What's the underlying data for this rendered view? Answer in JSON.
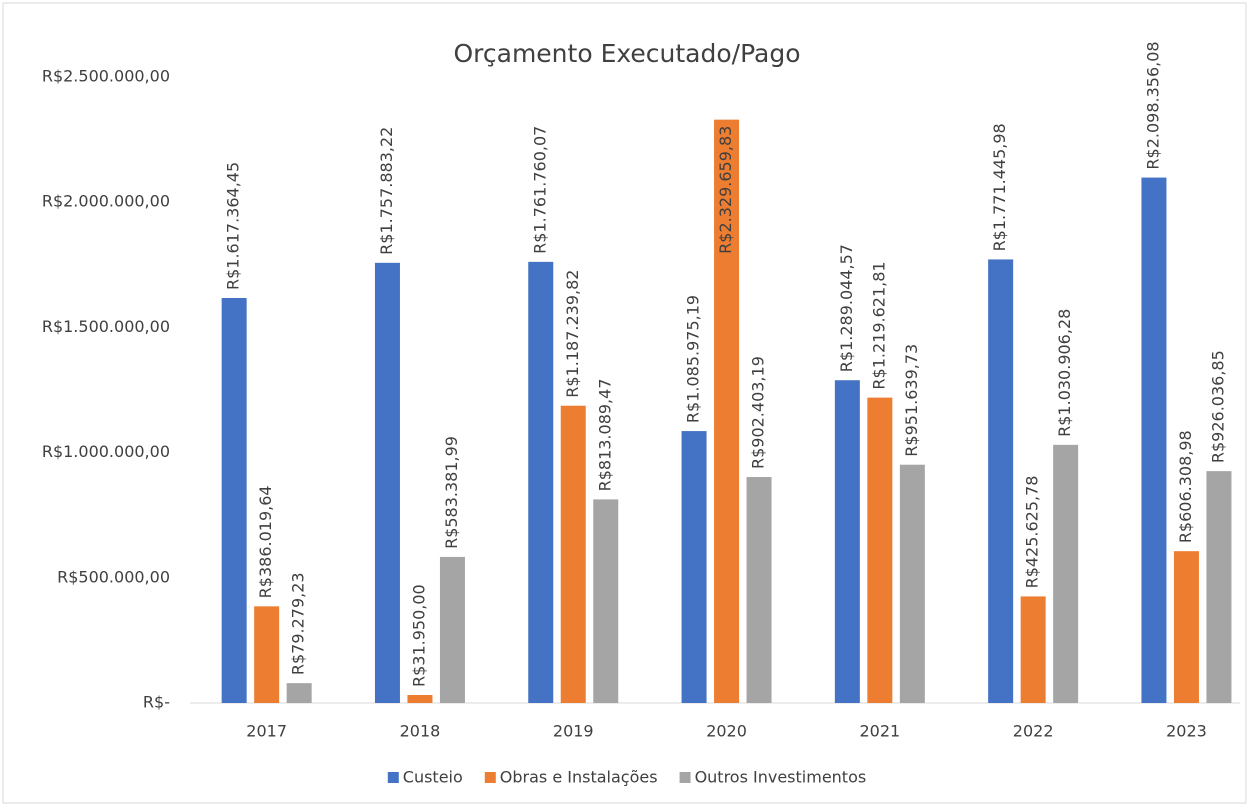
{
  "chart_data": {
    "type": "bar",
    "title": "Orçamento Executado/Pago",
    "categories": [
      "2017",
      "2018",
      "2019",
      "2020",
      "2021",
      "2022",
      "2023"
    ],
    "series": [
      {
        "name": "Custeio",
        "color": "#4472c4",
        "values": [
          1617364.45,
          1757883.22,
          1761760.07,
          1085975.19,
          1289044.57,
          1771445.98,
          2098356.08
        ],
        "value_labels": [
          "R$1.617.364,45",
          "R$1.757.883,22",
          "R$1.761.760,07",
          "R$1.085.975,19",
          "R$1.289.044,57",
          "R$1.771.445,98",
          "R$2.098.356,08"
        ]
      },
      {
        "name": "Obras e Instalações",
        "color": "#ed7d31",
        "values": [
          386019.64,
          31950.0,
          1187239.82,
          2329659.83,
          1219621.81,
          425625.78,
          606308.98
        ],
        "value_labels": [
          "R$386.019,64",
          "R$31.950,00",
          "R$1.187.239,82",
          "R$2.329.659,83",
          "R$1.219.621,81",
          "R$425.625,78",
          "R$606.308,98"
        ]
      },
      {
        "name": "Outros Investimentos",
        "color": "#a5a5a5",
        "values": [
          79279.23,
          583381.99,
          813089.47,
          902403.19,
          951639.73,
          1030906.28,
          926036.85
        ],
        "value_labels": [
          "R$79.279,23",
          "R$583.381,99",
          "R$813.089,47",
          "R$902.403,19",
          "R$951.639,73",
          "R$1.030.906,28",
          "R$926.036,85"
        ]
      }
    ],
    "ylim": [
      0,
      2500000
    ],
    "yticks": [
      {
        "value": 0,
        "label": "R$-"
      },
      {
        "value": 500000,
        "label": "R$500.000,00"
      },
      {
        "value": 1000000,
        "label": "R$1.000.000,00"
      },
      {
        "value": 1500000,
        "label": "R$1.500.000,00"
      },
      {
        "value": 2000000,
        "label": "R$2.000.000,00"
      },
      {
        "value": 2500000,
        "label": "R$2.500.000,00"
      }
    ],
    "grid": false,
    "legend": "bottom"
  }
}
